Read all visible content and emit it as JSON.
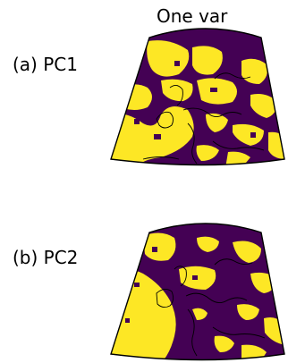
{
  "figure": {
    "column_title": "One var",
    "panels": [
      {
        "label": "(a) PC1"
      },
      {
        "label": "(b) PC2"
      }
    ]
  },
  "colors": {
    "positive": "#fde725",
    "negative": "#440154",
    "coastline": "#000000"
  }
}
